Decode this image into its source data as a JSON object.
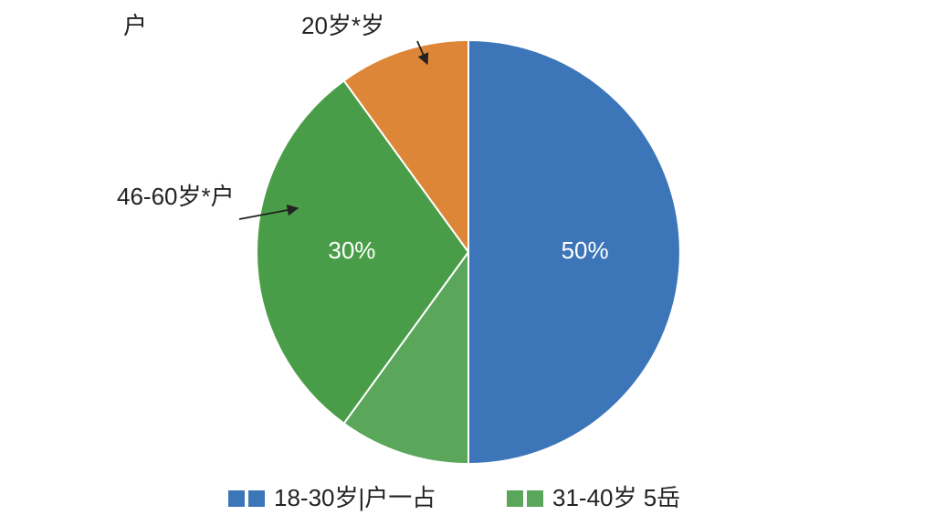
{
  "chart_data": {
    "type": "pie",
    "title": "户",
    "categories": [
      "18-30岁|户一占",
      "31-40岁 5岳",
      "46-60岁*户",
      "20岁*岁"
    ],
    "values": [
      50,
      10,
      30,
      10
    ],
    "value_labels": [
      "50%",
      null,
      "30%",
      null
    ],
    "colors": [
      "#3d75b9",
      "#5aa75b",
      "#4a9d48",
      "#de8637"
    ]
  }
}
